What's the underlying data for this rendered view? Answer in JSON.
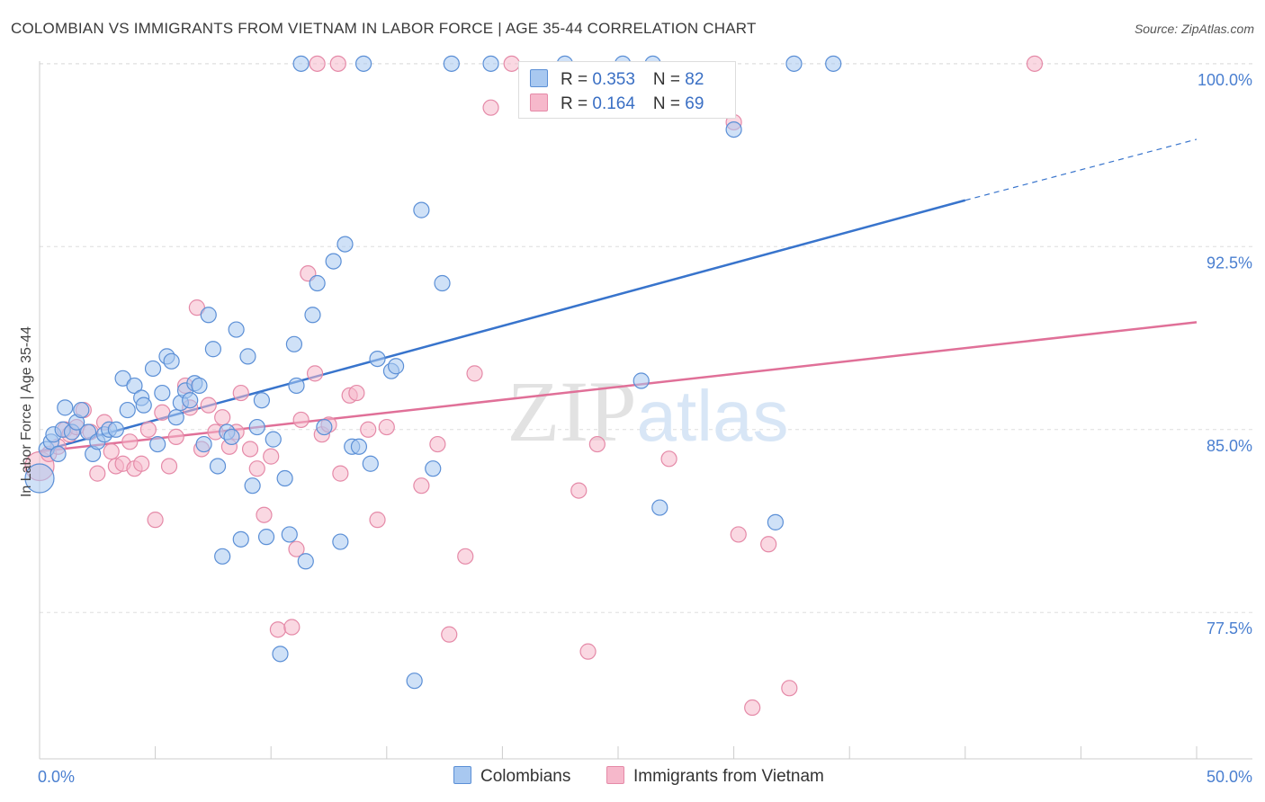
{
  "title": "COLOMBIAN VS IMMIGRANTS FROM VIETNAM IN LABOR FORCE | AGE 35-44 CORRELATION CHART",
  "source": "Source: ZipAtlas.com",
  "watermark": "ZIPatlas",
  "colors": {
    "blue_fill": "#a8c8f0",
    "blue_stroke": "#5b8fd6",
    "blue_line": "#3874cc",
    "pink_fill": "#f6b8cb",
    "pink_stroke": "#e58aa8",
    "pink_line": "#e07098",
    "axis_text": "#4a7fd0"
  },
  "legend": {
    "blue": {
      "r_label": "R = ",
      "r_value": "0.353",
      "n_label": "N = ",
      "n_value": "82"
    },
    "pink": {
      "r_label": "R = ",
      "r_value": "0.164",
      "n_label": "N = ",
      "n_value": "69"
    }
  },
  "bottom_legend": {
    "blue": "Colombians",
    "pink": "Immigrants from Vietnam"
  },
  "chart_data": {
    "type": "scatter",
    "title": "COLOMBIAN VS IMMIGRANTS FROM VIETNAM IN LABOR FORCE | AGE 35-44 CORRELATION CHART",
    "ylabel": "In Labor Force | Age 35-44",
    "xlim": [
      0,
      50
    ],
    "ylim": [
      71.5,
      100.4
    ],
    "x_tick_labels": [
      "0.0%",
      "50.0%"
    ],
    "y_ticks": [
      77.5,
      85.0,
      92.5,
      100.0
    ],
    "y_tick_labels": [
      "77.5%",
      "85.0%",
      "92.5%",
      "100.0%"
    ],
    "grid": true,
    "series": [
      {
        "name": "Colombians",
        "r": 0.353,
        "n": 82,
        "trend": {
          "x0": 0,
          "y0": 84.1,
          "x1": 40,
          "y1": 94.4,
          "x_dash_end": 50,
          "y_dash_end": 96.9
        },
        "points": [
          [
            0.0,
            83.0
          ],
          [
            0.3,
            84.2
          ],
          [
            0.5,
            84.5
          ],
          [
            0.6,
            84.8
          ],
          [
            0.8,
            84.0
          ],
          [
            1.0,
            85.0
          ],
          [
            1.1,
            85.9
          ],
          [
            1.4,
            84.9
          ],
          [
            1.6,
            85.3
          ],
          [
            1.8,
            85.8
          ],
          [
            2.1,
            84.9
          ],
          [
            2.3,
            84.0
          ],
          [
            2.5,
            84.5
          ],
          [
            2.8,
            84.8
          ],
          [
            3.0,
            85.0
          ],
          [
            3.3,
            85.0
          ],
          [
            3.6,
            87.1
          ],
          [
            3.8,
            85.8
          ],
          [
            4.1,
            86.8
          ],
          [
            4.4,
            86.3
          ],
          [
            4.5,
            86.0
          ],
          [
            4.9,
            87.5
          ],
          [
            5.1,
            84.4
          ],
          [
            5.3,
            86.5
          ],
          [
            5.5,
            88.0
          ],
          [
            5.7,
            87.8
          ],
          [
            5.9,
            85.5
          ],
          [
            6.1,
            86.1
          ],
          [
            6.3,
            86.6
          ],
          [
            6.5,
            86.2
          ],
          [
            6.7,
            86.9
          ],
          [
            6.9,
            86.8
          ],
          [
            7.1,
            84.4
          ],
          [
            7.3,
            89.7
          ],
          [
            7.5,
            88.3
          ],
          [
            7.7,
            83.5
          ],
          [
            7.9,
            79.8
          ],
          [
            8.1,
            84.9
          ],
          [
            8.3,
            84.7
          ],
          [
            8.5,
            89.1
          ],
          [
            8.7,
            80.5
          ],
          [
            9.0,
            88.0
          ],
          [
            9.2,
            82.7
          ],
          [
            9.4,
            85.1
          ],
          [
            9.6,
            86.2
          ],
          [
            9.8,
            80.6
          ],
          [
            10.1,
            84.6
          ],
          [
            10.4,
            75.8
          ],
          [
            10.6,
            83.0
          ],
          [
            10.8,
            80.7
          ],
          [
            11.0,
            88.5
          ],
          [
            11.1,
            86.8
          ],
          [
            11.3,
            100.0
          ],
          [
            11.5,
            79.6
          ],
          [
            11.8,
            89.7
          ],
          [
            12.0,
            91.0
          ],
          [
            12.3,
            85.1
          ],
          [
            12.7,
            91.9
          ],
          [
            13.0,
            80.4
          ],
          [
            13.2,
            92.6
          ],
          [
            13.5,
            84.3
          ],
          [
            13.8,
            84.3
          ],
          [
            14.0,
            100.0
          ],
          [
            14.3,
            83.6
          ],
          [
            14.6,
            87.9
          ],
          [
            15.2,
            87.4
          ],
          [
            15.4,
            87.6
          ],
          [
            16.2,
            74.7
          ],
          [
            16.5,
            94.0
          ],
          [
            17.0,
            83.4
          ],
          [
            17.4,
            91.0
          ],
          [
            17.8,
            100.0
          ],
          [
            19.5,
            100.0
          ],
          [
            22.7,
            100.0
          ],
          [
            25.2,
            100.0
          ],
          [
            26.0,
            87.0
          ],
          [
            26.5,
            100.0
          ],
          [
            26.8,
            81.8
          ],
          [
            30.0,
            97.3
          ],
          [
            31.8,
            81.2
          ],
          [
            32.6,
            100.0
          ],
          [
            34.3,
            100.0
          ]
        ]
      },
      {
        "name": "Immigrants from Vietnam",
        "r": 0.164,
        "n": 69,
        "trend": {
          "x0": 0,
          "y0": 84.1,
          "x1": 50,
          "y1": 89.4
        },
        "points": [
          [
            0.0,
            83.5
          ],
          [
            0.4,
            84.0
          ],
          [
            0.8,
            84.3
          ],
          [
            1.1,
            85.0
          ],
          [
            1.3,
            84.8
          ],
          [
            1.6,
            85.1
          ],
          [
            1.9,
            85.8
          ],
          [
            2.2,
            84.9
          ],
          [
            2.5,
            83.2
          ],
          [
            2.8,
            85.3
          ],
          [
            3.1,
            84.1
          ],
          [
            3.3,
            83.5
          ],
          [
            3.6,
            83.6
          ],
          [
            3.9,
            84.5
          ],
          [
            4.1,
            83.4
          ],
          [
            4.4,
            83.6
          ],
          [
            4.7,
            85.0
          ],
          [
            5.0,
            81.3
          ],
          [
            5.3,
            85.7
          ],
          [
            5.6,
            83.5
          ],
          [
            5.9,
            84.7
          ],
          [
            6.3,
            86.8
          ],
          [
            6.5,
            85.9
          ],
          [
            6.8,
            90.0
          ],
          [
            7.0,
            84.2
          ],
          [
            7.3,
            86.0
          ],
          [
            7.6,
            84.9
          ],
          [
            7.9,
            85.5
          ],
          [
            8.2,
            84.3
          ],
          [
            8.5,
            84.9
          ],
          [
            8.7,
            86.5
          ],
          [
            9.1,
            84.2
          ],
          [
            9.4,
            83.4
          ],
          [
            9.7,
            81.5
          ],
          [
            10.0,
            83.9
          ],
          [
            10.3,
            76.8
          ],
          [
            10.9,
            76.9
          ],
          [
            11.1,
            80.1
          ],
          [
            11.3,
            85.4
          ],
          [
            11.6,
            91.4
          ],
          [
            11.9,
            87.3
          ],
          [
            12.2,
            84.8
          ],
          [
            12.5,
            85.2
          ],
          [
            12.9,
            100.0
          ],
          [
            13.0,
            83.2
          ],
          [
            13.4,
            86.4
          ],
          [
            13.7,
            86.5
          ],
          [
            14.2,
            85.0
          ],
          [
            14.6,
            81.3
          ],
          [
            15.0,
            85.1
          ],
          [
            16.5,
            82.7
          ],
          [
            17.2,
            84.4
          ],
          [
            17.7,
            76.6
          ],
          [
            18.4,
            79.8
          ],
          [
            18.8,
            87.3
          ],
          [
            19.5,
            98.2
          ],
          [
            20.4,
            100.0
          ],
          [
            23.3,
            82.5
          ],
          [
            23.7,
            75.9
          ],
          [
            24.1,
            84.4
          ],
          [
            26.1,
            98.2
          ],
          [
            27.2,
            83.8
          ],
          [
            30.0,
            97.6
          ],
          [
            30.2,
            80.7
          ],
          [
            31.5,
            80.3
          ],
          [
            32.4,
            74.4
          ],
          [
            30.8,
            73.6
          ],
          [
            43.0,
            100.0
          ],
          [
            12.0,
            100.0
          ]
        ]
      }
    ]
  }
}
